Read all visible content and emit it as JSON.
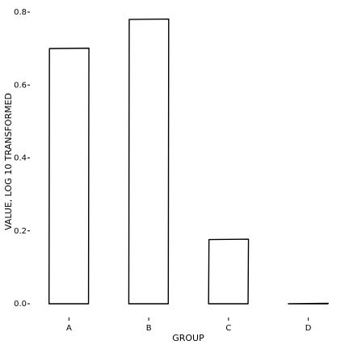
{
  "chart_data": {
    "type": "bar",
    "x_label": "GROUP",
    "y_label": "VALUE, LOG 10 TRANSFORMED",
    "categories": [
      "A",
      "B",
      "C",
      "D"
    ],
    "values": [
      0.7,
      0.78,
      0.176,
      0
    ],
    "color": "#ffffff",
    "ylim": [
      0,
      0.8
    ],
    "yticks": [
      {
        "value": 0,
        "label": "0.0"
      },
      0.2,
      0.4,
      0.6,
      0.8
    ]
  }
}
